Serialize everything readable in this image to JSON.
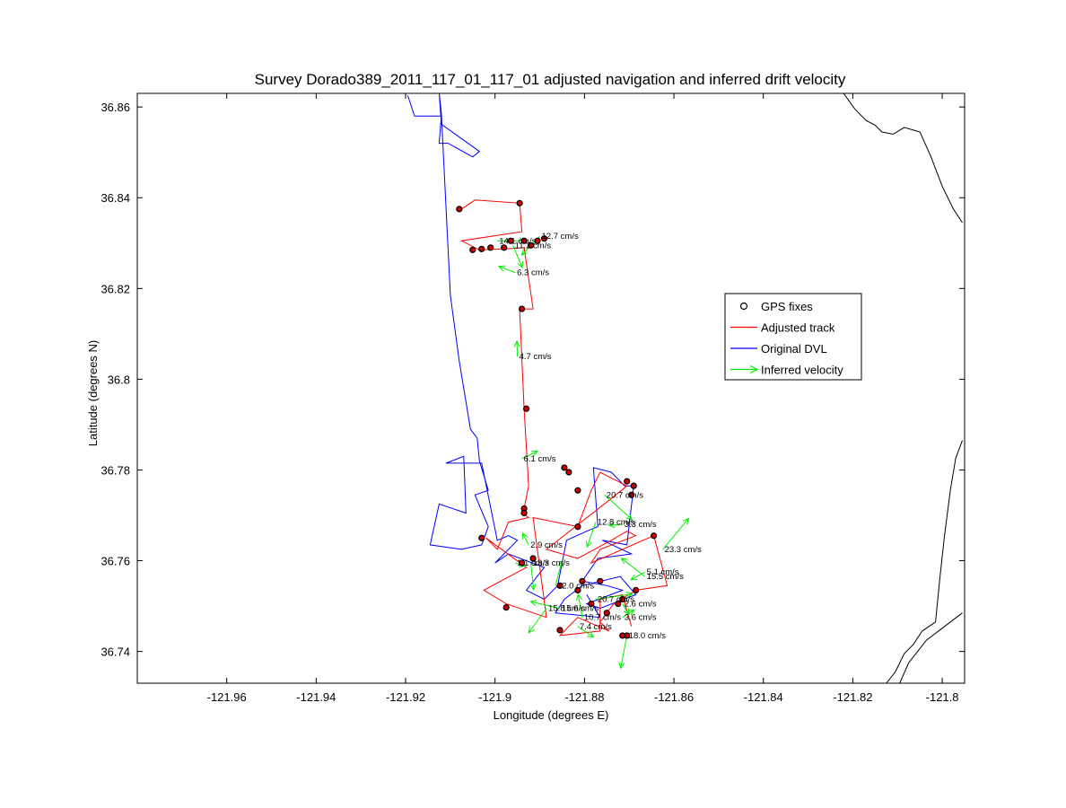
{
  "chart_data": {
    "type": "line",
    "title": "Survey Dorado389_2011_117_01_117_01 adjusted navigation and inferred drift velocity",
    "xlabel": "Longitude (degrees E)",
    "ylabel": "Latitude (degrees N)",
    "xlim": [
      -121.98,
      -121.795
    ],
    "ylim": [
      36.733,
      36.863
    ],
    "xticks": [
      -121.96,
      -121.94,
      -121.92,
      -121.9,
      -121.88,
      -121.86,
      -121.84,
      -121.82,
      -121.8
    ],
    "xtick_labels": [
      "-121.96",
      "-121.94",
      "-121.92",
      "-121.9",
      "-121.88",
      "-121.86",
      "-121.84",
      "-121.82",
      "-121.8"
    ],
    "yticks": [
      36.74,
      36.76,
      36.78,
      36.8,
      36.82,
      36.84,
      36.86
    ],
    "ytick_labels": [
      "36.74",
      "36.76",
      "36.78",
      "36.8",
      "36.82",
      "36.84",
      "36.86"
    ],
    "grid": false,
    "legend_position": "upper-right",
    "colors": {
      "gps": "#000000",
      "gps_fill": "#cc0000",
      "adjusted": "#ff0000",
      "original": "#0000ff",
      "velocity": "#00ee00",
      "coastline": "#000000"
    },
    "legend": [
      {
        "name": "GPS fixes",
        "kind": "marker",
        "color": "#000000"
      },
      {
        "name": "Adjusted track",
        "kind": "line",
        "color": "#ff0000"
      },
      {
        "name": "Original DVL",
        "kind": "line",
        "color": "#0000ff"
      },
      {
        "name": "Inferred velocity",
        "kind": "arrow",
        "color": "#00ee00"
      }
    ],
    "series": [
      {
        "name": "Original DVL",
        "x": [
          -121.9195,
          -121.918,
          -121.912,
          -121.9125,
          -121.9105,
          -121.905,
          -121.9035,
          -121.912,
          -121.9125,
          -121.912,
          -121.91,
          -121.908,
          -121.9055,
          -121.904,
          -121.9035,
          -121.9015,
          -121.9045,
          -121.9015,
          -121.903,
          -121.9075,
          -121.9145,
          -121.9125,
          -121.9065,
          -121.907,
          -121.911,
          -121.903,
          -121.8995,
          -121.897,
          -121.895,
          -121.9,
          -121.897,
          -121.889,
          -121.893,
          -121.889,
          -121.886,
          -121.884,
          -121.8795,
          -121.877,
          -121.878,
          -121.874,
          -121.871,
          -121.869,
          -121.8705,
          -121.876,
          -121.8695,
          -121.877,
          -121.8805,
          -121.875,
          -121.8715,
          -121.8795,
          -121.8765,
          -121.8685,
          -121.872,
          -121.8805,
          -121.8845,
          -121.8865,
          -121.8765,
          -121.8795
        ],
        "y": [
          36.8625,
          36.858,
          36.858,
          36.852,
          36.852,
          36.849,
          36.8502,
          36.8562,
          36.8632,
          36.8585,
          36.8185,
          36.804,
          36.789,
          36.787,
          36.782,
          36.7755,
          36.7745,
          36.7675,
          36.7635,
          36.7625,
          36.7635,
          36.7725,
          36.7705,
          36.783,
          36.7815,
          36.7815,
          36.7645,
          36.7655,
          36.7645,
          36.7595,
          36.7615,
          36.7585,
          36.7535,
          36.7515,
          36.7545,
          36.7645,
          36.7665,
          36.7675,
          36.7805,
          36.7795,
          36.7765,
          36.7765,
          36.7635,
          36.7645,
          36.7615,
          36.7605,
          36.7555,
          36.7545,
          36.7535,
          36.7505,
          36.7495,
          36.7525,
          36.7565,
          36.7545,
          36.7515,
          36.7485,
          36.7475,
          36.7525
        ]
      },
      {
        "name": "Adjusted track",
        "x": [
          -121.9075,
          -121.9045,
          -121.8945,
          -121.894,
          -121.9075,
          -121.9035,
          -121.896,
          -121.8935,
          -121.8915,
          -121.8945,
          -121.8935,
          -121.8925,
          -121.8935,
          -121.894,
          -121.8925,
          -121.897,
          -121.8995,
          -121.902,
          -121.893,
          -121.9025,
          -121.8975,
          -121.8885,
          -121.8915,
          -121.8815,
          -121.8785,
          -121.8765,
          -121.8705,
          -121.873,
          -121.8885,
          -121.8815,
          -121.874,
          -121.8705,
          -121.8685,
          -121.8765,
          -121.8785,
          -121.8645,
          -121.8615,
          -121.8685,
          -121.8735,
          -121.8765,
          -121.8745,
          -121.8815,
          -121.8855,
          -121.8765,
          -121.8765,
          -121.8715,
          -121.8695
        ],
        "y": [
          36.8375,
          36.8395,
          36.8388,
          36.8325,
          36.8305,
          36.8285,
          36.8288,
          36.829,
          36.8155,
          36.8155,
          36.7935,
          36.7765,
          36.7715,
          36.7705,
          36.7695,
          36.7685,
          36.7625,
          36.765,
          36.7585,
          36.7535,
          36.7505,
          36.7475,
          36.7695,
          36.7675,
          36.7755,
          36.7795,
          36.7765,
          36.7745,
          36.7625,
          36.7605,
          36.7645,
          36.7665,
          36.7655,
          36.7625,
          36.7595,
          36.7655,
          36.7545,
          36.7535,
          36.7505,
          36.7465,
          36.7445,
          36.7475,
          36.7435,
          36.7445,
          36.7515,
          36.7525,
          36.7455
        ]
      },
      {
        "name": "GPS fixes",
        "x": [
          -121.908,
          -121.8945,
          -121.905,
          -121.903,
          -121.901,
          -121.898,
          -121.8965,
          -121.8935,
          -121.892,
          -121.8905,
          -121.889,
          -121.894,
          -121.893,
          -121.8935,
          -121.8935,
          -121.8845,
          -121.8835,
          -121.8815,
          -121.8705,
          -121.869,
          -121.8695,
          -121.8815,
          -121.903,
          -121.8975,
          -121.894,
          -121.8915,
          -121.8855,
          -121.8815,
          -121.8805,
          -121.8765,
          -121.875,
          -121.8725,
          -121.8715,
          -121.8705,
          -121.8715,
          -121.8685,
          -121.8645,
          -121.8855,
          -121.8785
        ],
        "y": [
          36.8375,
          36.8388,
          36.8285,
          36.8287,
          36.829,
          36.829,
          36.8305,
          36.8305,
          36.8295,
          36.8305,
          36.831,
          36.8155,
          36.7935,
          36.7715,
          36.7705,
          36.7805,
          36.7795,
          36.7675,
          36.7775,
          36.7765,
          36.7745,
          36.7755,
          36.765,
          36.7497,
          36.7595,
          36.7605,
          36.7545,
          36.7535,
          36.7555,
          36.7555,
          36.7485,
          36.7505,
          36.7515,
          36.7435,
          36.7435,
          36.7535,
          36.7655,
          36.7447,
          36.7505
        ]
      }
    ],
    "velocity_arrows": [
      {
        "label": "14.1 cm/s",
        "x": -121.8995,
        "y": 36.8305
      },
      {
        "label": "11.2 cm/s",
        "x": -121.896,
        "y": 36.8295
      },
      {
        "label": "12.7 cm/s",
        "x": -121.89,
        "y": 36.8315
      },
      {
        "label": "6.3 cm/s",
        "x": -121.8955,
        "y": 36.8235
      },
      {
        "label": "4.7 cm/s",
        "x": -121.895,
        "y": 36.805
      },
      {
        "label": "6.1 cm/s",
        "x": -121.894,
        "y": 36.7825
      },
      {
        "label": "20.7 cm/s",
        "x": -121.8755,
        "y": 36.7745
      },
      {
        "label": "12.8 cm/s",
        "x": -121.8775,
        "y": 36.7685
      },
      {
        "label": "3.3 cm/s",
        "x": -121.8715,
        "y": 36.768
      },
      {
        "label": "2.9 cm/s",
        "x": -121.8925,
        "y": 36.7635
      },
      {
        "label": "23.3 cm/s",
        "x": -121.8625,
        "y": 36.7625
      },
      {
        "label": "1.1 cm/s",
        "x": -121.8955,
        "y": 36.7595
      },
      {
        "label": "13.3 cm/s",
        "x": -121.892,
        "y": 36.7595
      },
      {
        "label": "5.1 cm/s",
        "x": -121.8665,
        "y": 36.7575
      },
      {
        "label": "15.5 cm/s",
        "x": -121.8665,
        "y": 36.7565
      },
      {
        "label": "12.0 cm/s",
        "x": -121.8865,
        "y": 36.7545
      },
      {
        "label": "20.7 cm/s",
        "x": -121.8775,
        "y": 36.7515
      },
      {
        "label": "2.6 cm/s",
        "x": -121.8715,
        "y": 36.7505
      },
      {
        "label": "15.8 cm/s",
        "x": -121.8885,
        "y": 36.7495
      },
      {
        "label": "15.6 cm/s",
        "x": -121.8855,
        "y": 36.7495
      },
      {
        "label": "10.7 cm/s",
        "x": -121.8805,
        "y": 36.7475
      },
      {
        "label": "3.6 cm/s",
        "x": -121.8715,
        "y": 36.7475
      },
      {
        "label": "7.4 cm/s",
        "x": -121.8815,
        "y": 36.7455
      },
      {
        "label": "18.0 cm/s",
        "x": -121.8705,
        "y": 36.7435
      }
    ],
    "coastline": [
      {
        "x": [
          -121.8222,
          -121.8195,
          -121.818,
          -121.817,
          -121.815,
          -121.8135,
          -121.811,
          -121.8085,
          -121.805,
          -121.8025,
          -121.8,
          -121.7975,
          -121.7955
        ],
        "y": [
          36.8632,
          36.8595,
          36.858,
          36.857,
          36.856,
          36.8545,
          36.854,
          36.8555,
          36.8545,
          36.849,
          36.8425,
          36.8375,
          36.8345
        ]
      },
      {
        "x": [
          -121.7955,
          -121.797,
          -121.7982
        ],
        "y": [
          36.7865,
          36.7825,
          36.7755
        ]
      },
      {
        "x": [
          -121.7982,
          -121.7995,
          -121.8005,
          -121.8015
        ],
        "y": [
          36.7755,
          36.7655,
          36.7565,
          36.7465
        ]
      },
      {
        "x": [
          -121.8015,
          -121.8045,
          -121.8065,
          -121.8085
        ],
        "y": [
          36.7465,
          36.7445,
          36.7415,
          36.7395
        ]
      },
      {
        "x": [
          -121.8085,
          -121.8105,
          -121.8125
        ],
        "y": [
          36.7395,
          36.7355,
          36.733
        ]
      },
      {
        "x": [
          -121.8095,
          -121.8075,
          -121.8035,
          -121.7995,
          -121.7955
        ],
        "y": [
          36.733,
          36.7375,
          36.7425,
          36.7455,
          36.7485
        ]
      }
    ]
  }
}
